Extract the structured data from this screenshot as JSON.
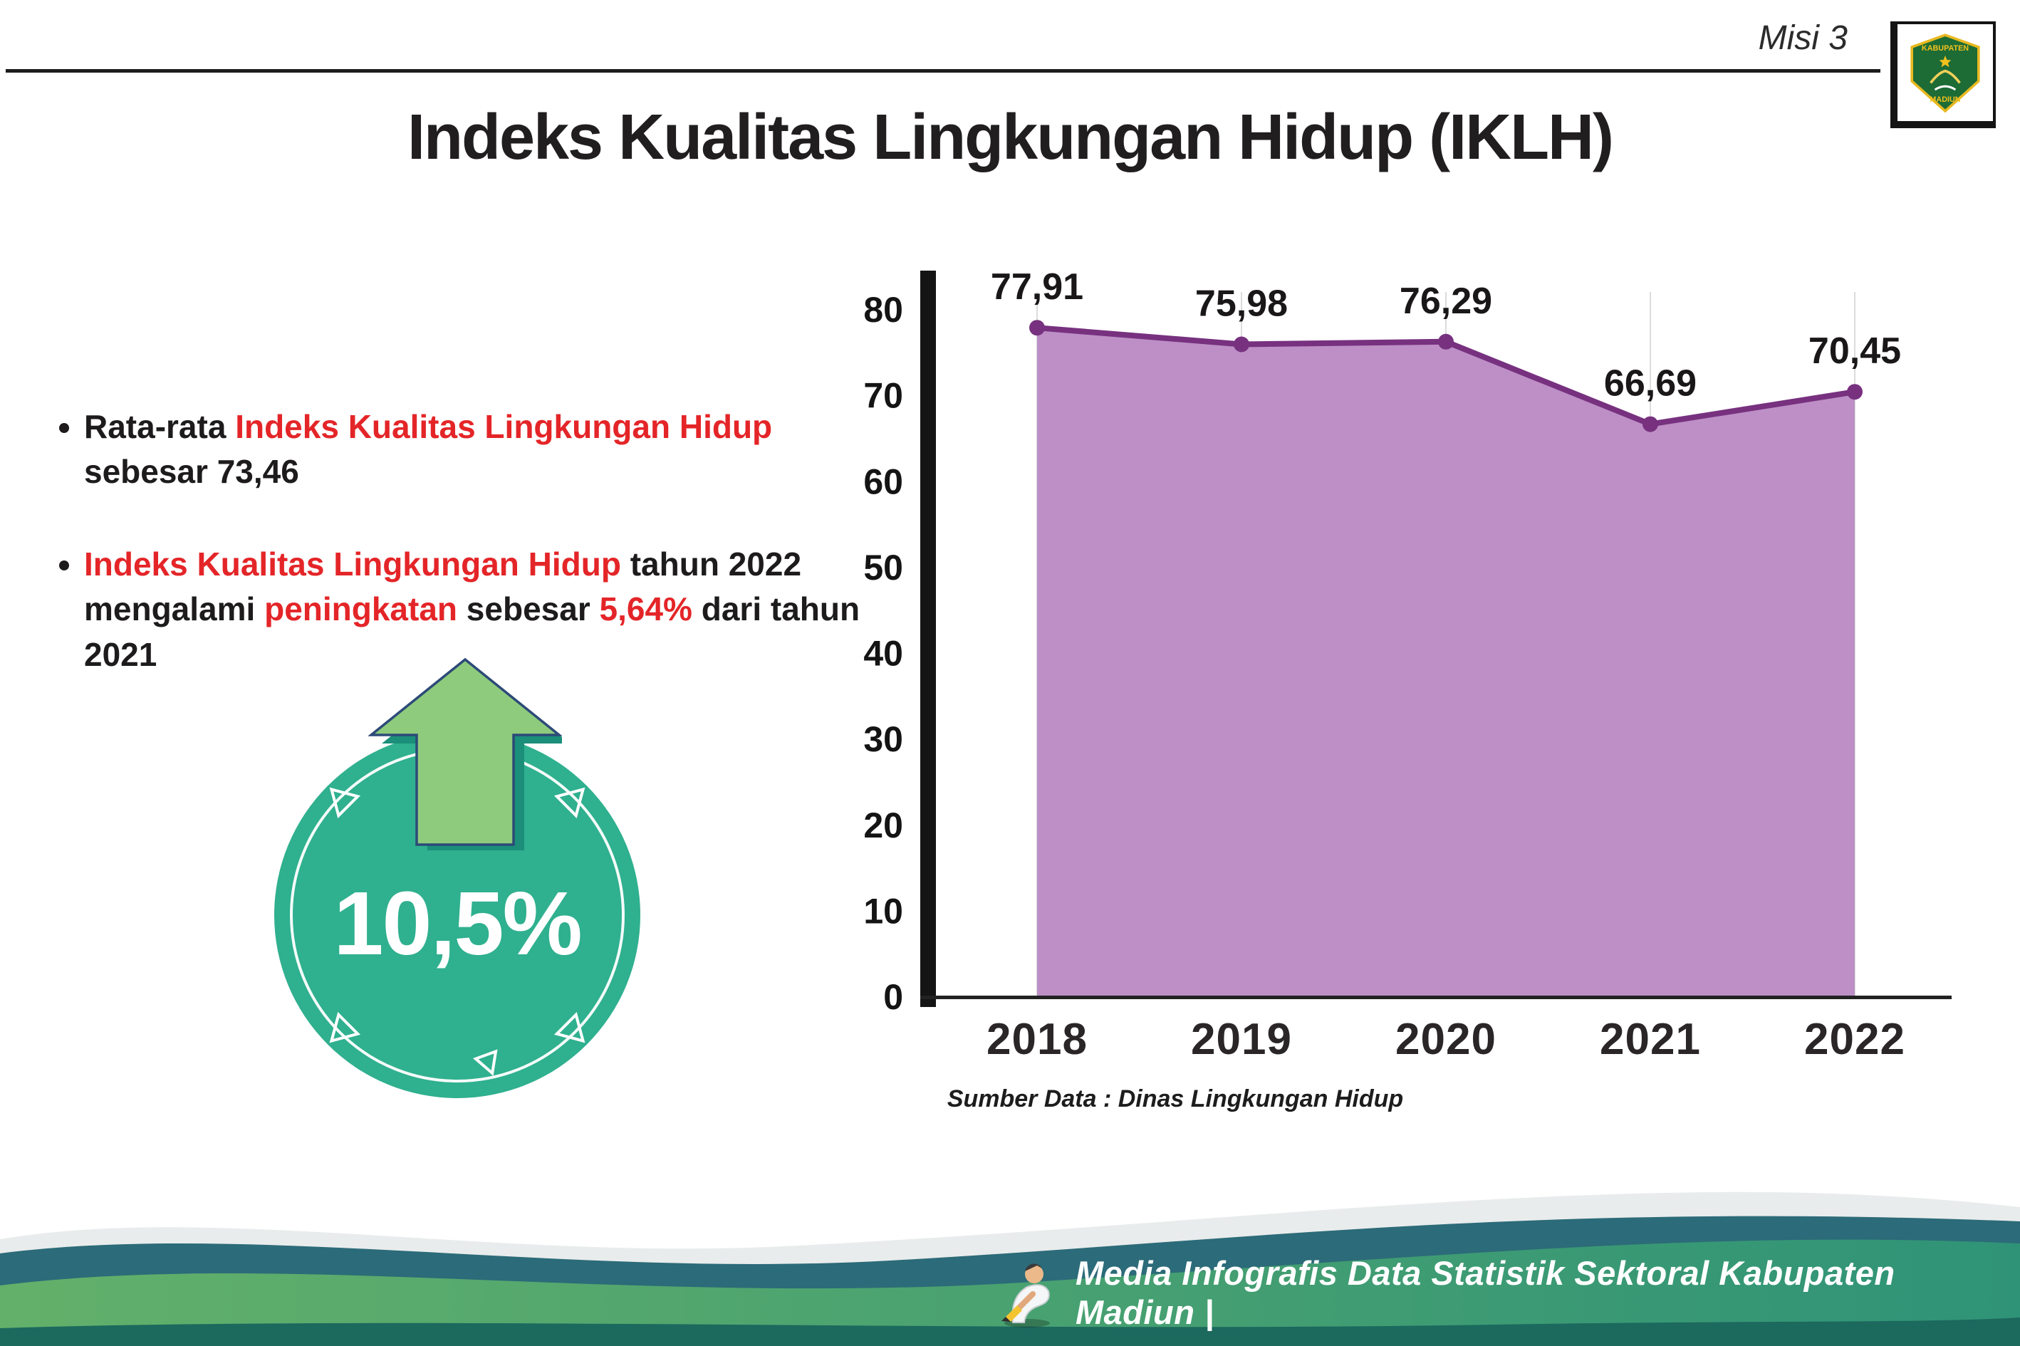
{
  "header": {
    "misi_label": "Misi 3",
    "title": "Indeks Kualitas Lingkungan Hidup (IKLH)",
    "logo": {
      "top_text": "KABUPATEN",
      "bottom_text": "MADIUN"
    }
  },
  "bullets": {
    "b1_p1": "Rata-rata ",
    "b1_p2": "Indeks Kualitas Lingkungan Hidup",
    "b1_p3": " sebesar 73,46",
    "b2_p1": "Indeks Kualitas Lingkungan Hidup",
    "b2_p2": " tahun 2022 mengalami ",
    "b2_p3": "peningkatan",
    "b2_p4": " sebesar ",
    "b2_p5": "5,64%",
    "b2_p6": " dari tahun 2021"
  },
  "badge": {
    "value": "10,5%"
  },
  "chart_data": {
    "type": "area",
    "title": "",
    "categories": [
      "2018",
      "2019",
      "2020",
      "2021",
      "2022"
    ],
    "values": [
      77.91,
      75.98,
      76.29,
      66.69,
      70.45
    ],
    "value_labels": [
      "77,91",
      "75,98",
      "76,29",
      "66,69",
      "70,45"
    ],
    "ylim": [
      0,
      80
    ],
    "yticks": [
      0,
      10,
      20,
      30,
      40,
      50,
      60,
      70,
      80
    ],
    "grid": "vertical-light",
    "legend": "none",
    "fill_color": "#bd8fc6",
    "line_color": "#77317f",
    "source": "Sumber Data : Dinas Lingkungan Hidup"
  },
  "footer": {
    "credit": "Media Infografis Data Statistik Sektoral Kabupaten Madiun |"
  },
  "colors": {
    "accent_red": "#e42528",
    "badge_teal": "#2fb08f",
    "arrow_green": "#8fcb7c",
    "chart_fill": "#bd8fc6",
    "chart_line": "#77317f",
    "footer_green": "#4fa46b",
    "footer_teal": "#2c6b79"
  }
}
